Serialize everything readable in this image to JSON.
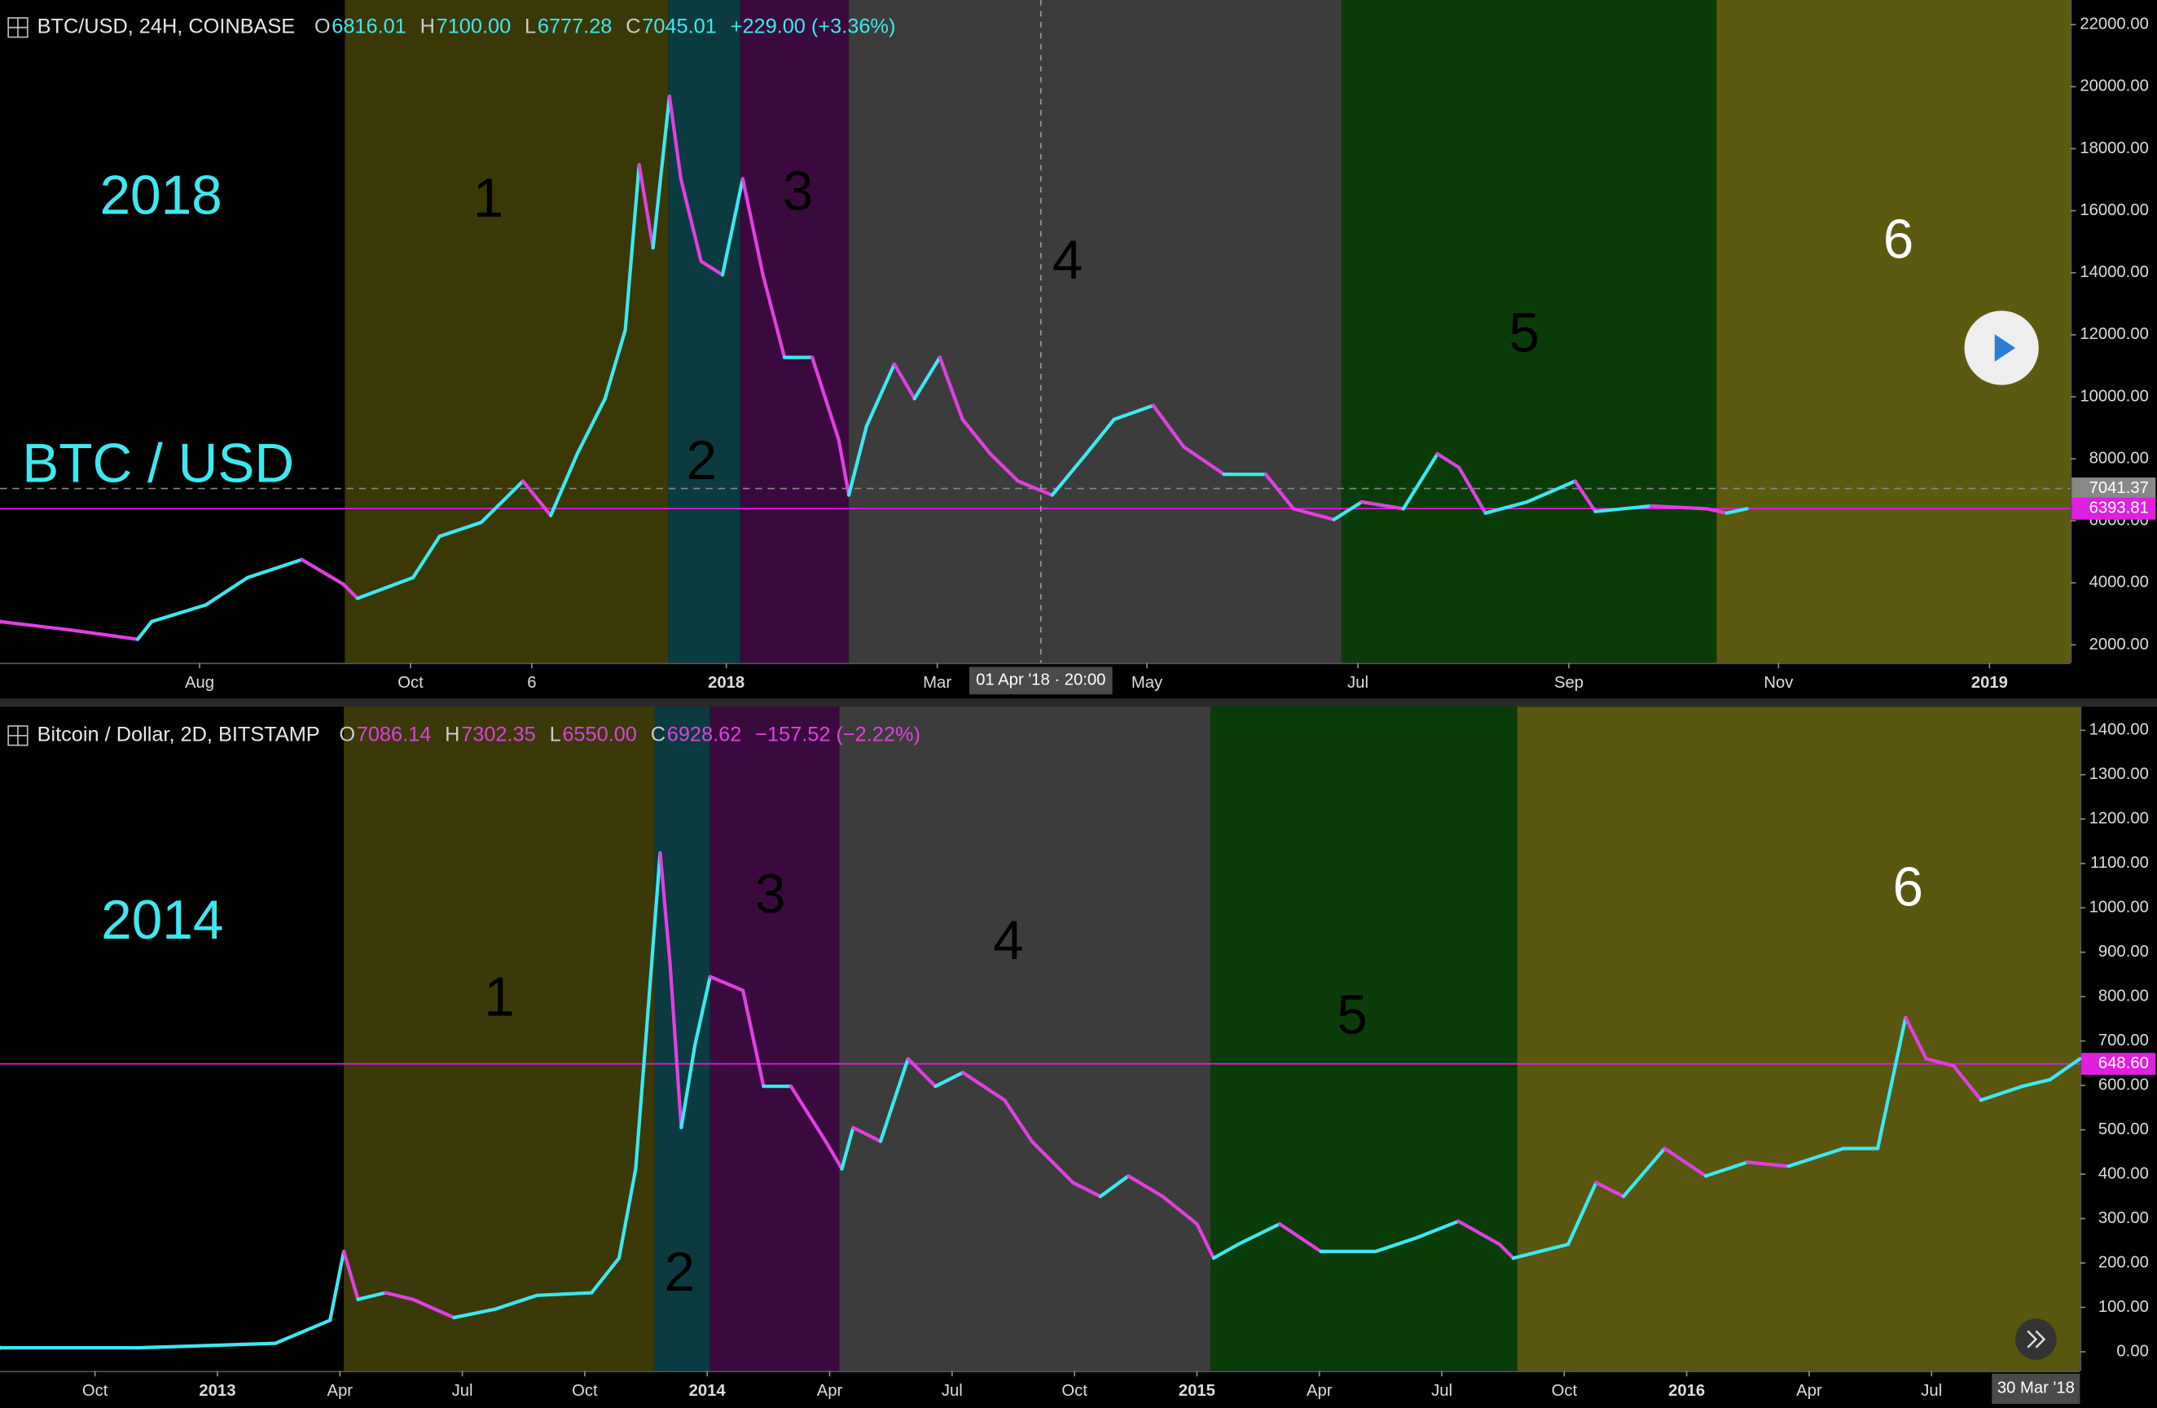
{
  "chart_data": [
    {
      "type": "line",
      "symbol": "BTC/USD, 24H, COINBASE",
      "ohlc": [
        {
          "key": "O",
          "value": "6816.01"
        },
        {
          "key": "H",
          "value": "7100.00"
        },
        {
          "key": "L",
          "value": "6777.28"
        },
        {
          "key": "C",
          "value": "7045.01"
        }
      ],
      "change": "+229.00 (+3.36%)",
      "header_color": "#3ee8f0",
      "annotations": [
        "2018",
        "BTC / USD"
      ],
      "phases": [
        {
          "label": "1",
          "start": 2017.698,
          "end": 2017.954,
          "color": "#3b3808",
          "text_color": "#000000"
        },
        {
          "label": "2",
          "start": 2017.954,
          "end": 2018.011,
          "color": "#0b3a40",
          "text_color": "#000000"
        },
        {
          "label": "3",
          "start": 2018.011,
          "end": 2018.097,
          "color": "#3a0a3e",
          "text_color": "#000000"
        },
        {
          "label": "4",
          "start": 2018.097,
          "end": 2018.487,
          "color": "#3c3c3c",
          "text_color": "#000000"
        },
        {
          "label": "5",
          "start": 2018.487,
          "end": 2018.784,
          "color": "#0a3c0a",
          "text_color": "#000000"
        },
        {
          "label": "6",
          "start": 2018.784,
          "end": 2019.064,
          "color": "#5c5a10",
          "text_color": "#ffffff"
        }
      ],
      "x": [
        2017.425,
        2017.479,
        2017.534,
        2017.545,
        2017.588,
        2017.621,
        2017.664,
        2017.697,
        2017.708,
        2017.752,
        2017.773,
        2017.806,
        2017.839,
        2017.861,
        2017.882,
        2017.904,
        2017.92,
        2017.931,
        2017.942,
        2017.955,
        2017.964,
        2017.98,
        2017.997,
        2018.013,
        2018.029,
        2018.046,
        2018.068,
        2018.089,
        2018.097,
        2018.111,
        2018.133,
        2018.149,
        2018.169,
        2018.187,
        2018.209,
        2018.231,
        2018.258,
        2018.285,
        2018.307,
        2018.338,
        2018.362,
        2018.394,
        2018.427,
        2018.449,
        2018.481,
        2018.503,
        2018.536,
        2018.563,
        2018.58,
        2018.601,
        2018.634,
        2018.672,
        2018.688,
        2018.732,
        2018.776,
        2018.792,
        2018.808
      ],
      "values": [
        2750,
        2490,
        2180,
        2750,
        3290,
        4170,
        4750,
        3950,
        3500,
        4170,
        5500,
        5950,
        7280,
        6170,
        8160,
        9940,
        12150,
        17480,
        14800,
        19690,
        17030,
        14370,
        13930,
        17030,
        13930,
        11270,
        11270,
        8610,
        6830,
        9050,
        11050,
        9940,
        11270,
        9270,
        8160,
        7280,
        6830,
        8160,
        9270,
        9720,
        8390,
        7500,
        7500,
        6390,
        6040,
        6610,
        6390,
        8160,
        7720,
        6250,
        6610,
        7280,
        6300,
        6480,
        6390,
        6250,
        6390
      ],
      "up_color": "#3ee8f0",
      "down_color": "#e040e0",
      "xlim": [
        2017.425,
        2019.064
      ],
      "xticks": [
        {
          "value": 2017.583,
          "label": "Aug"
        },
        {
          "value": 2017.75,
          "label": "Oct"
        },
        {
          "value": 2017.846,
          "label": "6"
        },
        2018,
        {
          "value": 2018.167,
          "label": "Mar"
        },
        {
          "value": 2018.333,
          "label": "May"
        },
        {
          "value": 2018.5,
          "label": "Jul"
        },
        {
          "value": 2018.667,
          "label": "Sep"
        },
        {
          "value": 2018.833,
          "label": "Nov"
        },
        2019
      ],
      "ylim": [
        1424,
        22794
      ],
      "yticks": [
        {
          "value": 2000,
          "label": "2000.00"
        },
        {
          "value": 4000,
          "label": "4000.00"
        },
        {
          "value": 6000,
          "label": "6000.00"
        },
        {
          "value": 8000,
          "label": "8000.00"
        },
        {
          "value": 10000,
          "label": "10000.00"
        },
        {
          "value": 12000,
          "label": "12000.00"
        },
        {
          "value": 14000,
          "label": "14000.00"
        },
        {
          "value": 16000,
          "label": "16000.00"
        },
        {
          "value": 18000,
          "label": "18000.00"
        },
        {
          "value": 20000,
          "label": "20000.00"
        },
        {
          "value": 22000,
          "label": "22000.00"
        }
      ],
      "price_lines": [
        {
          "value": 7041.37,
          "color": "#888888",
          "dashed": true
        },
        {
          "value": 6393.81,
          "color": "#e020e0",
          "dashed": false
        }
      ],
      "crosshair": {
        "x": 2018.249,
        "label": "01 Apr '18 · 20:00"
      }
    },
    {
      "type": "line",
      "symbol": "Bitcoin / Dollar, 2D, BITSTAMP",
      "ohlc": [
        {
          "key": "O",
          "value": "7086.14"
        },
        {
          "key": "H",
          "value": "7302.35"
        },
        {
          "key": "L",
          "value": "6550.00"
        },
        {
          "key": "C",
          "value": "6928.62"
        }
      ],
      "change": "−157.52 (−2.22%)",
      "header_color": "#e040e0",
      "annotations": [
        "2014"
      ],
      "phases": [
        {
          "label": "1",
          "start": 2013.258,
          "end": 2013.893,
          "color": "#3b380a",
          "text_color": "#000000"
        },
        {
          "label": "2",
          "start": 2013.893,
          "end": 2014.006,
          "color": "#0b3a40",
          "text_color": "#000000"
        },
        {
          "label": "3",
          "start": 2014.006,
          "end": 2014.27,
          "color": "#3a0a3e",
          "text_color": "#000000"
        },
        {
          "label": "4",
          "start": 2014.27,
          "end": 2015.028,
          "color": "#3c3c3c",
          "text_color": "#000000"
        },
        {
          "label": "5",
          "start": 2015.028,
          "end": 2015.654,
          "color": "#0a3c0a",
          "text_color": "#000000"
        },
        {
          "label": "6",
          "start": 2015.654,
          "end": 2016.803,
          "color": "#59570f",
          "text_color": "#ffffff"
        }
      ],
      "x": [
        2012.556,
        2012.837,
        2013.118,
        2013.23,
        2013.258,
        2013.287,
        2013.343,
        2013.399,
        2013.483,
        2013.567,
        2013.652,
        2013.764,
        2013.82,
        2013.854,
        2013.876,
        2013.904,
        2013.924,
        2013.947,
        2013.975,
        2014.006,
        2014.073,
        2014.115,
        2014.171,
        2014.242,
        2014.275,
        2014.298,
        2014.354,
        2014.41,
        2014.466,
        2014.522,
        2014.607,
        2014.663,
        2014.747,
        2014.803,
        2014.86,
        2014.93,
        2015.0,
        2015.034,
        2015.084,
        2015.169,
        2015.253,
        2015.365,
        2015.449,
        2015.534,
        2015.618,
        2015.646,
        2015.758,
        2015.815,
        2015.871,
        2015.955,
        2016.039,
        2016.124,
        2016.208,
        2016.32,
        2016.39,
        2016.447,
        2016.489,
        2016.545,
        2016.601,
        2016.685,
        2016.742,
        2016.803
      ],
      "values": [
        9,
        9,
        19,
        71,
        226,
        118,
        133,
        118,
        77,
        96,
        127,
        133,
        211,
        412,
        722,
        1124,
        876,
        505,
        691,
        845,
        814,
        598,
        598,
        474,
        412,
        505,
        474,
        660,
        598,
        629,
        567,
        474,
        381,
        350,
        396,
        350,
        288,
        211,
        242,
        288,
        226,
        226,
        257,
        294,
        242,
        211,
        242,
        381,
        350,
        458,
        396,
        427,
        418,
        458,
        458,
        753,
        660,
        644,
        567,
        598,
        613,
        660
      ],
      "up_color": "#3ee8f0",
      "down_color": "#e040e0",
      "xlim": [
        2012.556,
        2016.803
      ],
      "xticks": [
        {
          "value": 2012.75,
          "label": "Oct"
        },
        2013,
        {
          "value": 2013.25,
          "label": "Apr"
        },
        {
          "value": 2013.5,
          "label": "Jul"
        },
        {
          "value": 2013.75,
          "label": "Oct"
        },
        2014,
        {
          "value": 2014.25,
          "label": "Apr"
        },
        {
          "value": 2014.5,
          "label": "Jul"
        },
        {
          "value": 2014.75,
          "label": "Oct"
        },
        2015,
        {
          "value": 2015.25,
          "label": "Apr"
        },
        {
          "value": 2015.5,
          "label": "Jul"
        },
        {
          "value": 2015.75,
          "label": "Oct"
        },
        2016,
        {
          "value": 2016.25,
          "label": "Apr"
        },
        {
          "value": 2016.5,
          "label": "Jul"
        }
      ],
      "ylim": [
        -43,
        1453
      ],
      "yticks": [
        {
          "value": 0,
          "label": "0.00"
        },
        {
          "value": 100,
          "label": "100.00"
        },
        {
          "value": 200,
          "label": "200.00"
        },
        {
          "value": 300,
          "label": "300.00"
        },
        {
          "value": 400,
          "label": "400.00"
        },
        {
          "value": 500,
          "label": "500.00"
        },
        {
          "value": 600,
          "label": "600.00"
        },
        {
          "value": 700,
          "label": "700.00"
        },
        {
          "value": 800,
          "label": "800.00"
        },
        {
          "value": 900,
          "label": "900.00"
        },
        {
          "value": 1000,
          "label": "1000.00"
        },
        {
          "value": 1100,
          "label": "1100.00"
        },
        {
          "value": 1200,
          "label": "1200.00"
        },
        {
          "value": 1300,
          "label": "1300.00"
        },
        {
          "value": 1400,
          "label": "1400.00"
        }
      ],
      "price_lines": [
        {
          "value": 648.6,
          "label": "648.60",
          "color": "#e020e0",
          "dashed": false
        }
      ],
      "cursor_date": "30 Mar '18"
    }
  ]
}
